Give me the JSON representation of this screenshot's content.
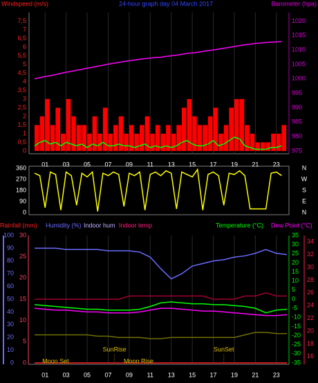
{
  "chart_data": [
    {
      "type": "bar",
      "title": "24-hour graph day  04 March 2017",
      "ylabel": "Windspeed (m/s)",
      "y2label": "Barometer (hpa)",
      "x": [
        0,
        0.5,
        1,
        1.5,
        2,
        2.5,
        3,
        3.5,
        4,
        4.5,
        5,
        5.5,
        6,
        6.5,
        7,
        7.5,
        8,
        8.5,
        9,
        9.5,
        10,
        10.5,
        11,
        11.5,
        12,
        12.5,
        13,
        13.5,
        14,
        14.5,
        15,
        15.5,
        16,
        16.5,
        17,
        17.5,
        18,
        18.5,
        19,
        19.5,
        20,
        20.5,
        21,
        21.5,
        22,
        22.5,
        23,
        23.5
      ],
      "xlim": [
        0,
        24
      ],
      "xticks": [
        {
          "value": 1,
          "label": "01"
        },
        {
          "value": 3,
          "label": "03"
        },
        {
          "value": 5,
          "label": "05"
        },
        {
          "value": 7,
          "label": "07"
        },
        {
          "value": 9,
          "label": "09"
        },
        {
          "value": 11,
          "label": "11"
        },
        {
          "value": 13,
          "label": "13"
        },
        {
          "value": 15,
          "label": "15"
        },
        {
          "value": 17,
          "label": "17"
        },
        {
          "value": 19,
          "label": "19"
        },
        {
          "value": 21,
          "label": "21"
        },
        {
          "value": 23,
          "label": "23"
        }
      ],
      "ylim": [
        0,
        8
      ],
      "yticks": [
        0,
        {
          "value": 0.5,
          "label": "0,5"
        },
        1,
        {
          "value": 1.5,
          "label": "1,5"
        },
        2,
        {
          "value": 2.5,
          "label": "2,5"
        },
        3,
        {
          "value": 3.5,
          "label": "3,5"
        },
        4,
        {
          "value": 4.5,
          "label": "4,5"
        },
        5,
        {
          "value": 5.5,
          "label": "5,5"
        },
        6,
        {
          "value": 6.5,
          "label": "6,5"
        },
        7,
        {
          "value": 7.5,
          "label": "7,5"
        }
      ],
      "y2lim": [
        975,
        1023
      ],
      "y2ticks": [
        975,
        980,
        985,
        990,
        995,
        1000,
        1005,
        1010,
        1015,
        1020
      ],
      "grid": true,
      "ycolor": "#ff2020",
      "y2color": "#dd00dd",
      "title_color": "#3344ff",
      "series": [
        {
          "type": "bar",
          "color": "#ff0000",
          "values": [
            1.5,
            2,
            3,
            1.5,
            2.5,
            1,
            3,
            2,
            1.5,
            1.5,
            1,
            2,
            1,
            2.5,
            1,
            1.5,
            2,
            1,
            1.5,
            1,
            1.5,
            2,
            1,
            1.5,
            1,
            1.5,
            1,
            1.5,
            2.5,
            3,
            2,
            1.5,
            1.5,
            2,
            2.5,
            1,
            1.5,
            2.5,
            3,
            3,
            1.5,
            1,
            0.5,
            0.5,
            0.5,
            1,
            1,
            1.5
          ]
        },
        {
          "type": "line",
          "color": "#00ff00",
          "values": [
            0.3,
            0.5,
            0.6,
            0.4,
            0.5,
            0.3,
            0.5,
            0.4,
            0.3,
            0.4,
            0.2,
            0.4,
            0.3,
            0.5,
            0.3,
            0.3,
            0.4,
            0.3,
            0.3,
            0.2,
            0.3,
            0.4,
            0.2,
            0.3,
            0.2,
            0.3,
            0.2,
            0.3,
            0.5,
            0.6,
            0.4,
            0.3,
            0.3,
            0.4,
            0.6,
            0.3,
            0.4,
            0.6,
            0.8,
            0.7,
            0.3,
            0.2,
            0.1,
            0.1,
            0.1,
            0.2,
            0.2,
            0.3
          ]
        },
        {
          "type": "line",
          "axis": "y2",
          "color": "#ff00ff",
          "values": [
            1000,
            1000.4,
            1000.8,
            1001.1,
            1001.5,
            1001.9,
            1002.3,
            1002.6,
            1003,
            1003.3,
            1003.7,
            1004,
            1004.4,
            1004.7,
            1005.1,
            1005.4,
            1005.7,
            1006,
            1006.3,
            1006.5,
            1006.8,
            1007,
            1007.2,
            1007.4,
            1007.5,
            1007.8,
            1008,
            1008.2,
            1008.5,
            1008.8,
            1009,
            1009.2,
            1009.5,
            1009.8,
            1010,
            1010.3,
            1010.6,
            1010.9,
            1011.2,
            1011.5,
            1011.8,
            1012,
            1012.3,
            1012.4,
            1012.6,
            1012.7,
            1012.8,
            1012.9
          ]
        }
      ]
    },
    {
      "type": "line",
      "x": [
        0,
        0.5,
        1,
        1.5,
        2,
        2.5,
        3,
        3.5,
        4,
        4.5,
        5,
        5.5,
        6,
        6.5,
        7,
        7.5,
        8,
        8.5,
        9,
        9.5,
        10,
        10.5,
        11,
        11.5,
        12,
        12.5,
        13,
        13.5,
        14,
        14.5,
        15,
        15.5,
        16,
        16.5,
        17,
        17.5,
        18,
        18.5,
        19,
        19.5,
        20,
        20.5,
        21,
        21.5,
        22,
        22.5,
        23,
        23.5
      ],
      "xlim": [
        0,
        24
      ],
      "ylim": [
        0,
        360
      ],
      "yticks": [
        0,
        90,
        180,
        270,
        360
      ],
      "y2lim": [
        0,
        360
      ],
      "y2ticks": [
        {
          "value": 0,
          "label": "N"
        },
        {
          "value": 90,
          "label": "E"
        },
        {
          "value": 180,
          "label": "S"
        },
        {
          "value": 270,
          "label": "W"
        },
        {
          "value": 360,
          "label": "N"
        }
      ],
      "grid": true,
      "ycolor": "#ffffff",
      "y2color": "#ffffff",
      "series": [
        {
          "type": "line",
          "color": "#ffff00",
          "values": [
            320,
            300,
            40,
            330,
            310,
            20,
            330,
            300,
            60,
            320,
            290,
            330,
            10,
            320,
            300,
            330,
            310,
            50,
            320,
            300,
            330,
            20,
            310,
            330,
            300,
            340,
            320,
            30,
            330,
            310,
            290,
            350,
            20,
            310,
            330,
            300,
            60,
            320,
            310,
            340,
            300,
            30,
            30,
            30,
            30,
            320,
            330,
            300
          ]
        }
      ]
    },
    {
      "type": "line",
      "x": [
        0,
        1,
        2,
        3,
        4,
        5,
        6,
        7,
        8,
        9,
        10,
        11,
        12,
        13,
        14,
        15,
        16,
        17,
        18,
        19,
        20,
        21,
        22,
        23,
        24
      ],
      "xlim": [
        0,
        24
      ],
      "xticks": [
        {
          "value": 1,
          "label": "01"
        },
        {
          "value": 3,
          "label": "03"
        },
        {
          "value": 5,
          "label": "05"
        },
        {
          "value": 7,
          "label": "07"
        },
        {
          "value": 9,
          "label": "09"
        },
        {
          "value": 11,
          "label": "11"
        },
        {
          "value": 13,
          "label": "13"
        },
        {
          "value": 15,
          "label": "15"
        },
        {
          "value": 17,
          "label": "17"
        },
        {
          "value": 19,
          "label": "19"
        },
        {
          "value": 21,
          "label": "21"
        },
        {
          "value": 23,
          "label": "23"
        }
      ],
      "grid": true,
      "axes": [
        {
          "lim": [
            0,
            30
          ],
          "ticks": [
            0,
            5,
            10,
            15,
            20,
            25,
            30
          ],
          "color": "#ff4060"
        },
        {
          "lim": [
            0,
            100
          ],
          "ticks": [
            0,
            10,
            20,
            30,
            40,
            50,
            60,
            70,
            80,
            90,
            100
          ],
          "color": "#7070ff"
        },
        {
          "lim": [
            -35,
            35
          ],
          "ticks": [
            -35,
            -30,
            -25,
            -20,
            -15,
            -10,
            -5,
            0,
            5,
            10,
            15,
            20,
            25,
            30,
            35
          ],
          "color": "#00ff00"
        },
        {
          "lim": [
            15,
            35
          ],
          "ticks": [
            16,
            18,
            20,
            22,
            24,
            26,
            28,
            30,
            32,
            34
          ],
          "color": "#ff2050"
        }
      ],
      "series": [
        {
          "name": "Rainfall (mm)",
          "axis": 0,
          "color": "#ff2020",
          "values": [
            0,
            0,
            0,
            0,
            0,
            0,
            0,
            0,
            0,
            0,
            0,
            0,
            0,
            0,
            0,
            0,
            0,
            0,
            0,
            0,
            0,
            0,
            0,
            0,
            0
          ]
        },
        {
          "name": "Humidity (%)",
          "axis": 1,
          "color": "#6b6bff",
          "values": [
            90,
            90,
            90,
            89,
            89,
            89,
            89,
            88,
            88,
            88,
            87,
            83,
            74,
            66,
            70,
            76,
            78,
            80,
            81,
            83,
            84,
            86,
            89,
            86,
            85
          ]
        },
        {
          "name": "Indoor hum",
          "axis": 1,
          "color": "#707000",
          "values": [
            22,
            22,
            22,
            22,
            22,
            22,
            21,
            21,
            20,
            20,
            20,
            19,
            19,
            20,
            20,
            20,
            20,
            20,
            20,
            20,
            22,
            24,
            24,
            23,
            23
          ]
        },
        {
          "name": "Indoor temp",
          "axis": 3,
          "color": "#a00030",
          "values": [
            25,
            25,
            25,
            25,
            25,
            25,
            25,
            25,
            25,
            25.5,
            25.5,
            25.5,
            25.5,
            25.5,
            25.5,
            25.5,
            25.5,
            25,
            25,
            25,
            25.5,
            25.5,
            26,
            25.5,
            25.5
          ]
        },
        {
          "name": "Temperature (°C)",
          "axis": 2,
          "color": "#00ff00",
          "values": [
            -3,
            -3.5,
            -4,
            -4.5,
            -5,
            -5.5,
            -5.5,
            -6,
            -6,
            -6,
            -5.5,
            -4,
            -2,
            -1.5,
            -2,
            -2.5,
            -2.5,
            -3,
            -3,
            -3.5,
            -4,
            -5,
            -7.5,
            -6,
            -5.5
          ]
        },
        {
          "name": "Dew Point (°C)",
          "axis": 2,
          "color": "#ff00ff",
          "values": [
            -5,
            -5.5,
            -6,
            -6,
            -6.5,
            -7,
            -7,
            -7.5,
            -7.5,
            -7.5,
            -7,
            -6,
            -5,
            -5,
            -5.5,
            -6,
            -6.5,
            -6.5,
            -7,
            -7.5,
            -8,
            -8.5,
            -9,
            -9,
            -8.5
          ]
        }
      ],
      "sun_events": [
        {
          "label": "SunRise",
          "x": 7.6
        },
        {
          "label": "SunSet",
          "x": 18
        }
      ],
      "moon_events": [
        {
          "label": "Moon Set",
          "x": 2
        },
        {
          "label": "Moon Rise",
          "x": 9.9
        }
      ]
    }
  ]
}
